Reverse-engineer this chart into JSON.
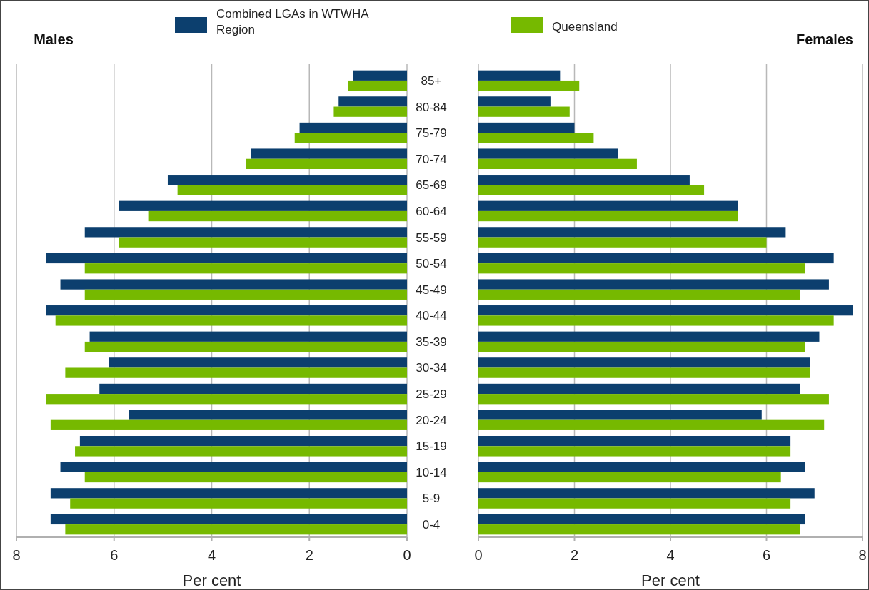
{
  "chart_data": [
    {
      "type": "bar",
      "orientation": "horizontal",
      "title": "Males",
      "xlabel": "Per cent",
      "categories": [
        "85+",
        "80-84",
        "75-79",
        "70-74",
        "65-69",
        "60-64",
        "55-59",
        "50-54",
        "45-49",
        "40-44",
        "35-39",
        "30-34",
        "25-29",
        "20-24",
        "15-19",
        "10-14",
        "5-9",
        "0-4"
      ],
      "series": [
        {
          "name": "Combined LGAs in WTWHA Region",
          "color": "#0c3f6e",
          "values": [
            1.1,
            1.4,
            2.2,
            3.2,
            4.9,
            5.9,
            6.6,
            7.4,
            7.1,
            7.4,
            6.5,
            6.1,
            6.3,
            5.7,
            6.7,
            7.1,
            7.3,
            7.3
          ]
        },
        {
          "name": "Queensland",
          "color": "#76b900",
          "values": [
            1.2,
            1.5,
            2.3,
            3.3,
            4.7,
            5.3,
            5.9,
            6.6,
            6.6,
            7.2,
            6.6,
            7.0,
            7.4,
            7.3,
            6.8,
            6.6,
            6.9,
            7.0
          ]
        }
      ],
      "xlim": [
        8,
        0
      ],
      "xticks": [
        8,
        6,
        4,
        2,
        0
      ],
      "grid": "x",
      "legend": "top"
    },
    {
      "type": "bar",
      "orientation": "horizontal",
      "title": "Females",
      "xlabel": "Per cent",
      "categories": [
        null,
        null,
        null,
        null,
        null,
        null,
        null,
        null,
        null,
        null,
        null,
        null,
        null,
        null,
        null,
        null,
        null,
        null
      ],
      "series": [
        {
          "color": "#0c3f6e",
          "values": [
            1.7,
            1.5,
            2.0,
            2.9,
            4.4,
            5.4,
            6.4,
            7.4,
            7.3,
            7.8,
            7.1,
            6.9,
            6.7,
            5.9,
            6.5,
            6.8,
            7.0,
            6.8
          ]
        },
        {
          "color": "#76b900",
          "values": [
            2.1,
            1.9,
            2.4,
            3.3,
            4.7,
            5.4,
            6.0,
            6.8,
            6.7,
            7.4,
            6.8,
            6.9,
            7.3,
            7.2,
            6.5,
            6.3,
            6.5,
            6.7
          ]
        }
      ],
      "xlim": [
        0,
        8
      ],
      "xticks": [
        0,
        2,
        4,
        6,
        8
      ],
      "grid": "x",
      "tick_labels": "x"
    }
  ]
}
